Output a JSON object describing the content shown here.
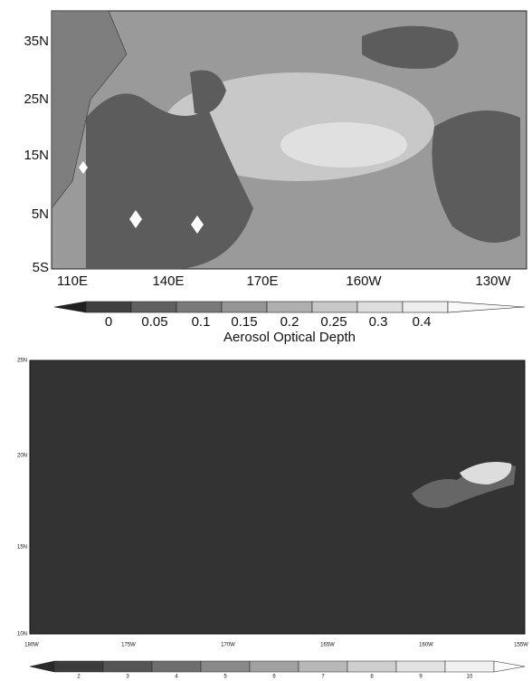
{
  "maps": [
    {
      "lat_labels": [
        "35N",
        "25N",
        "15N",
        "5N",
        "5S"
      ],
      "lon_labels": [
        "110E",
        "140E",
        "170E",
        "160W",
        "130W"
      ],
      "colorbar": {
        "labels": [
          "0",
          "0.05",
          "0.1",
          "0.15",
          "0.2",
          "0.25",
          "0.3",
          "0.4"
        ],
        "title": "Aerosol Optical Depth"
      }
    },
    {
      "lat_labels": [
        "25N",
        "20N",
        "15N",
        "10N"
      ],
      "lon_labels": [
        "180W",
        "175W",
        "170W",
        "165W",
        "160W",
        "155W"
      ],
      "colorbar": {
        "labels": [
          "2",
          "3",
          "4",
          "5",
          "6",
          "7",
          "8",
          "9",
          "10"
        ]
      }
    }
  ]
}
